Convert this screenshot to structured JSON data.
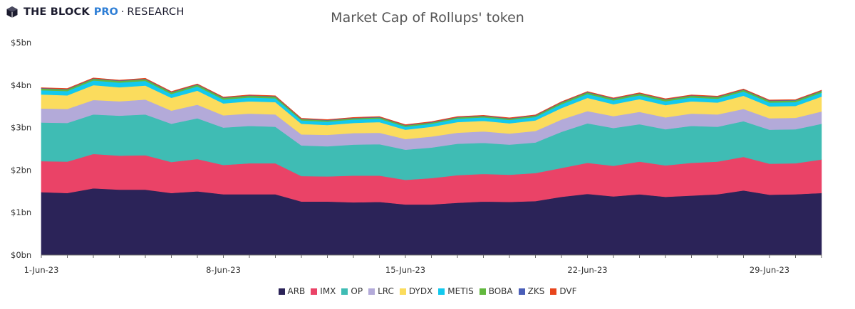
{
  "brand": {
    "name": "THE BLOCK",
    "pro": "PRO",
    "separator": "·",
    "research": "RESEARCH"
  },
  "chart_data": {
    "type": "area",
    "stacked": true,
    "title": "Market Cap of Rollups' token",
    "xlabel": "",
    "ylabel": "",
    "ylim": [
      0,
      5
    ],
    "y_unit": "bn USD",
    "yticks": [
      "$0bn",
      "$1bn",
      "$2bn",
      "$3bn",
      "$4bn",
      "$5bn"
    ],
    "x": [
      "2023-06-01",
      "2023-06-02",
      "2023-06-03",
      "2023-06-04",
      "2023-06-05",
      "2023-06-06",
      "2023-06-07",
      "2023-06-08",
      "2023-06-09",
      "2023-06-10",
      "2023-06-11",
      "2023-06-12",
      "2023-06-13",
      "2023-06-14",
      "2023-06-15",
      "2023-06-16",
      "2023-06-17",
      "2023-06-18",
      "2023-06-19",
      "2023-06-20",
      "2023-06-21",
      "2023-06-22",
      "2023-06-23",
      "2023-06-24",
      "2023-06-25",
      "2023-06-26",
      "2023-06-27",
      "2023-06-28",
      "2023-06-29",
      "2023-06-30",
      "2023-07-01"
    ],
    "xtick_labels": [
      "1-Jun-23",
      "8-Jun-23",
      "15-Jun-23",
      "22-Jun-23",
      "29-Jun-23"
    ],
    "xtick_dates": [
      "2023-06-01",
      "2023-06-08",
      "2023-06-15",
      "2023-06-22",
      "2023-06-29"
    ],
    "legend_position": "bottom",
    "grid": false,
    "series": [
      {
        "name": "ARB",
        "color": "#2b2358",
        "values": [
          1.48,
          1.46,
          1.57,
          1.54,
          1.54,
          1.46,
          1.5,
          1.43,
          1.43,
          1.43,
          1.26,
          1.26,
          1.24,
          1.25,
          1.19,
          1.19,
          1.23,
          1.26,
          1.25,
          1.27,
          1.37,
          1.44,
          1.38,
          1.43,
          1.37,
          1.4,
          1.43,
          1.52,
          1.42,
          1.43,
          1.46
        ]
      },
      {
        "name": "IMX",
        "color": "#ea4367",
        "values": [
          0.73,
          0.74,
          0.81,
          0.8,
          0.81,
          0.73,
          0.76,
          0.69,
          0.73,
          0.73,
          0.6,
          0.59,
          0.63,
          0.62,
          0.58,
          0.62,
          0.65,
          0.65,
          0.64,
          0.66,
          0.68,
          0.73,
          0.72,
          0.77,
          0.74,
          0.77,
          0.77,
          0.79,
          0.73,
          0.73,
          0.79
        ]
      },
      {
        "name": "OP",
        "color": "#3fbcb4",
        "values": [
          0.91,
          0.91,
          0.93,
          0.94,
          0.96,
          0.9,
          0.96,
          0.88,
          0.88,
          0.86,
          0.72,
          0.71,
          0.73,
          0.74,
          0.71,
          0.72,
          0.74,
          0.73,
          0.71,
          0.72,
          0.85,
          0.93,
          0.89,
          0.88,
          0.85,
          0.87,
          0.82,
          0.84,
          0.8,
          0.8,
          0.84
        ]
      },
      {
        "name": "LRC",
        "color": "#b3aad9",
        "values": [
          0.33,
          0.33,
          0.34,
          0.34,
          0.35,
          0.31,
          0.32,
          0.29,
          0.29,
          0.29,
          0.26,
          0.27,
          0.27,
          0.27,
          0.25,
          0.26,
          0.26,
          0.27,
          0.26,
          0.27,
          0.29,
          0.29,
          0.28,
          0.29,
          0.28,
          0.29,
          0.29,
          0.29,
          0.27,
          0.27,
          0.29
        ]
      },
      {
        "name": "DYDX",
        "color": "#fbdc5d",
        "values": [
          0.33,
          0.32,
          0.35,
          0.33,
          0.33,
          0.3,
          0.33,
          0.28,
          0.29,
          0.29,
          0.25,
          0.23,
          0.24,
          0.25,
          0.22,
          0.23,
          0.25,
          0.25,
          0.24,
          0.25,
          0.27,
          0.31,
          0.28,
          0.3,
          0.29,
          0.29,
          0.28,
          0.31,
          0.28,
          0.28,
          0.35
        ]
      },
      {
        "name": "METIS",
        "color": "#12c9ee",
        "values": [
          0.1,
          0.1,
          0.11,
          0.11,
          0.11,
          0.09,
          0.1,
          0.09,
          0.09,
          0.09,
          0.08,
          0.08,
          0.08,
          0.08,
          0.07,
          0.07,
          0.08,
          0.08,
          0.08,
          0.08,
          0.09,
          0.09,
          0.09,
          0.09,
          0.09,
          0.09,
          0.09,
          0.1,
          0.09,
          0.09,
          0.09
        ]
      },
      {
        "name": "BOBA",
        "color": "#62b83e",
        "values": [
          0.04,
          0.04,
          0.04,
          0.04,
          0.04,
          0.04,
          0.04,
          0.04,
          0.04,
          0.04,
          0.03,
          0.03,
          0.03,
          0.03,
          0.03,
          0.03,
          0.03,
          0.03,
          0.03,
          0.03,
          0.04,
          0.04,
          0.04,
          0.04,
          0.04,
          0.04,
          0.04,
          0.04,
          0.04,
          0.04,
          0.04
        ]
      },
      {
        "name": "ZKS",
        "color": "#4a5eb8",
        "values": [
          0.01,
          0.01,
          0.01,
          0.01,
          0.01,
          0.01,
          0.01,
          0.01,
          0.01,
          0.01,
          0.01,
          0.01,
          0.01,
          0.01,
          0.01,
          0.01,
          0.01,
          0.01,
          0.01,
          0.01,
          0.01,
          0.01,
          0.01,
          0.01,
          0.01,
          0.01,
          0.01,
          0.01,
          0.01,
          0.01,
          0.01
        ]
      },
      {
        "name": "DVF",
        "color": "#e8451c",
        "values": [
          0.01,
          0.01,
          0.01,
          0.01,
          0.01,
          0.01,
          0.01,
          0.01,
          0.01,
          0.01,
          0.01,
          0.01,
          0.01,
          0.01,
          0.01,
          0.01,
          0.01,
          0.01,
          0.01,
          0.01,
          0.01,
          0.01,
          0.01,
          0.01,
          0.01,
          0.01,
          0.01,
          0.01,
          0.01,
          0.01,
          0.01
        ]
      }
    ]
  }
}
